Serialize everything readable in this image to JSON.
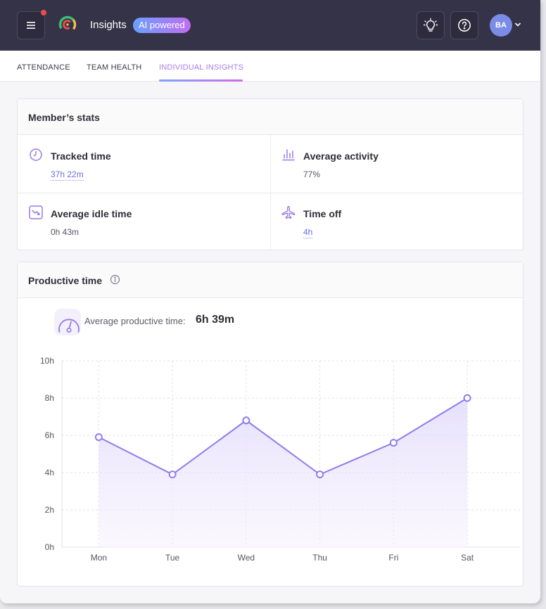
{
  "header": {
    "title": "Insights",
    "badge": "AI powered",
    "avatar_initials": "BA"
  },
  "tabs": [
    {
      "label": "ATTENDANCE",
      "active": false
    },
    {
      "label": "TEAM HEALTH",
      "active": false
    },
    {
      "label": "INDIVIDUAL INSIGHTS",
      "active": true
    }
  ],
  "members_stats": {
    "title": "Member’s stats",
    "tracked": {
      "label": "Tracked time",
      "value": "37h 22m",
      "icon": "clock-icon"
    },
    "activity": {
      "label": "Average activity",
      "value": "77%",
      "icon": "activity-bars-icon"
    },
    "idle": {
      "label": "Average idle time",
      "value": "0h 43m",
      "icon": "idle-trend-icon"
    },
    "timeoff": {
      "label": "Time off",
      "value": "4h",
      "icon": "plane-icon"
    }
  },
  "productive": {
    "title": "Productive time",
    "avg_label": "Average productive time:",
    "avg_value": "6h 39m"
  },
  "colors": {
    "topbar": "#353347",
    "accent": "#8f7cf0",
    "tab_active": "#a97be8",
    "link": "#6a6ee0"
  },
  "chart_data": {
    "type": "area",
    "categories": [
      "Mon",
      "Tue",
      "Wed",
      "Thu",
      "Fri",
      "Sat"
    ],
    "values": [
      5.9,
      3.9,
      6.8,
      3.9,
      5.6,
      8.0
    ],
    "ylim": [
      0,
      10
    ],
    "yticks": [
      "0h",
      "2h",
      "4h",
      "6h",
      "8h",
      "10h"
    ],
    "grid": true
  }
}
